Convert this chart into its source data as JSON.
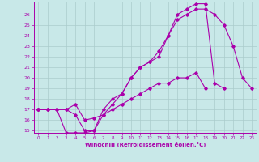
{
  "xlabel": "Windchill (Refroidissement éolien,°C)",
  "bg_color": "#c8e8e8",
  "grid_color": "#aacccc",
  "line_color": "#aa00aa",
  "line1_x": [
    0,
    1,
    2,
    3,
    4,
    5,
    6,
    7,
    8,
    9,
    10,
    11,
    12,
    13,
    14,
    15,
    16,
    17,
    18,
    19,
    20,
    21,
    22,
    23
  ],
  "line1_y": [
    17,
    17,
    17,
    17,
    16.5,
    15,
    15,
    16.5,
    17.5,
    18.5,
    20,
    21,
    21.5,
    22,
    24,
    25.5,
    26,
    26.5,
    26.5,
    26,
    25,
    23,
    20,
    19
  ],
  "line2_x": [
    0,
    1,
    2,
    3,
    4,
    5,
    6,
    7,
    8,
    9,
    10,
    11,
    12,
    13,
    14,
    15,
    16,
    17,
    18,
    19,
    20
  ],
  "line2_y": [
    17,
    17,
    17,
    14.8,
    14.8,
    14.8,
    15,
    17,
    18,
    18.5,
    20,
    21,
    21.5,
    22.5,
    24,
    26,
    26.5,
    27,
    27,
    19.5,
    19
  ],
  "line3_x": [
    0,
    1,
    2,
    3,
    4,
    5,
    6,
    7,
    8,
    9,
    10,
    11,
    12,
    13,
    14,
    15,
    16,
    17,
    18
  ],
  "line3_y": [
    17,
    17,
    17,
    17,
    17.5,
    16,
    16.2,
    16.5,
    17,
    17.5,
    18,
    18.5,
    19,
    19.5,
    19.5,
    20,
    20,
    20.5,
    19
  ],
  "ylim": [
    14.8,
    27.2
  ],
  "xlim": [
    -0.5,
    23.5
  ],
  "yticks": [
    15,
    16,
    17,
    18,
    19,
    20,
    21,
    22,
    23,
    24,
    25,
    26
  ],
  "xticks": [
    0,
    1,
    2,
    3,
    4,
    5,
    6,
    7,
    8,
    9,
    10,
    11,
    12,
    13,
    14,
    15,
    16,
    17,
    18,
    19,
    20,
    21,
    22,
    23
  ]
}
